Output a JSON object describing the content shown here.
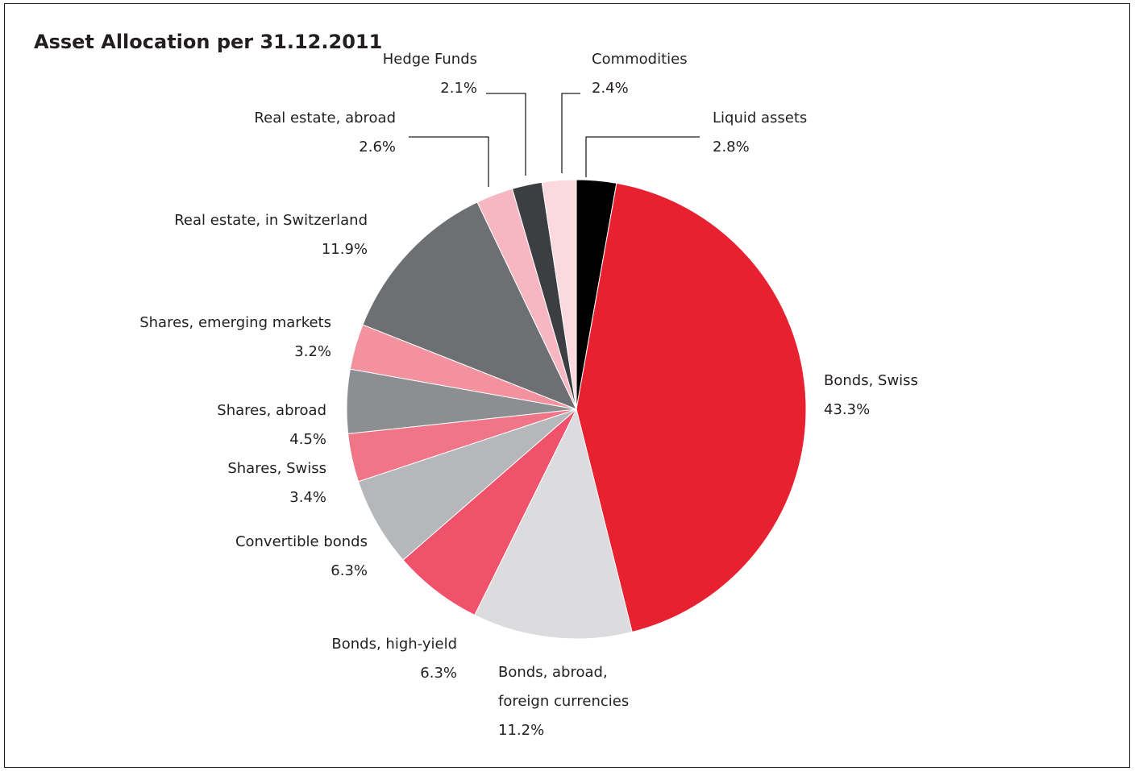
{
  "chart_data": {
    "type": "pie",
    "title": "Asset Allocation per 31.12.2011",
    "unit": "%",
    "slices": [
      {
        "label": [
          "Liquid assets"
        ],
        "value": 2.8,
        "display": "2.8%",
        "color": "#000000"
      },
      {
        "label": [
          "Bonds, Swiss"
        ],
        "value": 43.3,
        "display": "43.3%",
        "color": "#e82131"
      },
      {
        "label": [
          "Bonds, abroad,",
          "foreign currencies"
        ],
        "value": 11.2,
        "display": "11.2%",
        "color": "#dcdcdf"
      },
      {
        "label": [
          "Bonds, high-yield"
        ],
        "value": 6.3,
        "display": "6.3%",
        "color": "#f0516b"
      },
      {
        "label": [
          "Convertible bonds"
        ],
        "value": 6.3,
        "display": "6.3%",
        "color": "#b6b7ba"
      },
      {
        "label": [
          "Shares, Swiss"
        ],
        "value": 3.4,
        "display": "3.4%",
        "color": "#f07587"
      },
      {
        "label": [
          "Shares, abroad"
        ],
        "value": 4.5,
        "display": "4.5%",
        "color": "#8d8e92"
      },
      {
        "label": [
          "Shares, emerging markets"
        ],
        "value": 3.2,
        "display": "3.2%",
        "color": "#f4919f"
      },
      {
        "label": [
          "Real estate, in Switzerland"
        ],
        "value": 11.9,
        "display": "11.9%",
        "color": "#6e6f73"
      },
      {
        "label": [
          "Real estate, abroad"
        ],
        "value": 2.6,
        "display": "2.6%",
        "color": "#f6b6c2"
      },
      {
        "label": [
          "Hedge Funds"
        ],
        "value": 2.1,
        "display": "2.1%",
        "color": "#3d3e42"
      },
      {
        "label": [
          "Commodities"
        ],
        "value": 2.4,
        "display": "2.4%",
        "color": "#fbd9de"
      }
    ]
  }
}
